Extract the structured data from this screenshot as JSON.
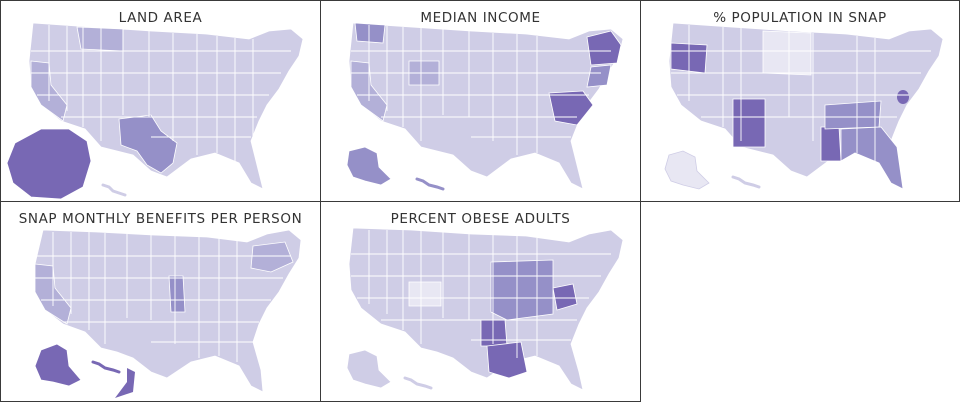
{
  "panels": [
    {
      "id": "land",
      "title": "LAND AREA"
    },
    {
      "id": "income",
      "title": "MEDIAN INCOME"
    },
    {
      "id": "snap",
      "title": "% POPULATION IN SNAP"
    },
    {
      "id": "benefits",
      "title": "SNAP MONTHLY BENEFITS PER PERSON"
    },
    {
      "id": "obese",
      "title": "PERCENT OBESE ADULTS"
    }
  ],
  "colors": {
    "light": "#e8e7f3",
    "base": "#cfcde6",
    "mid": "#b3b0d8",
    "strong": "#9590c8",
    "dark": "#7868b4",
    "border": "#3a3a3a"
  },
  "highlights": {
    "land": [
      "alaska-dark",
      "texas-mid",
      "california-mid",
      "montana-mid"
    ],
    "income": [
      "alaska-mid",
      "maryland-dark",
      "new-england-dark",
      "california-mid"
    ],
    "snap": [
      "oregon-dark",
      "mississippi-dark",
      "new-mexico-dark",
      "kentucky-mid"
    ],
    "benefits": [
      "alaska-dark",
      "hawaii-dark",
      "illinois-mid"
    ],
    "obese": [
      "mississippi-dark",
      "arkansas-dark",
      "west-virginia-dark"
    ]
  }
}
